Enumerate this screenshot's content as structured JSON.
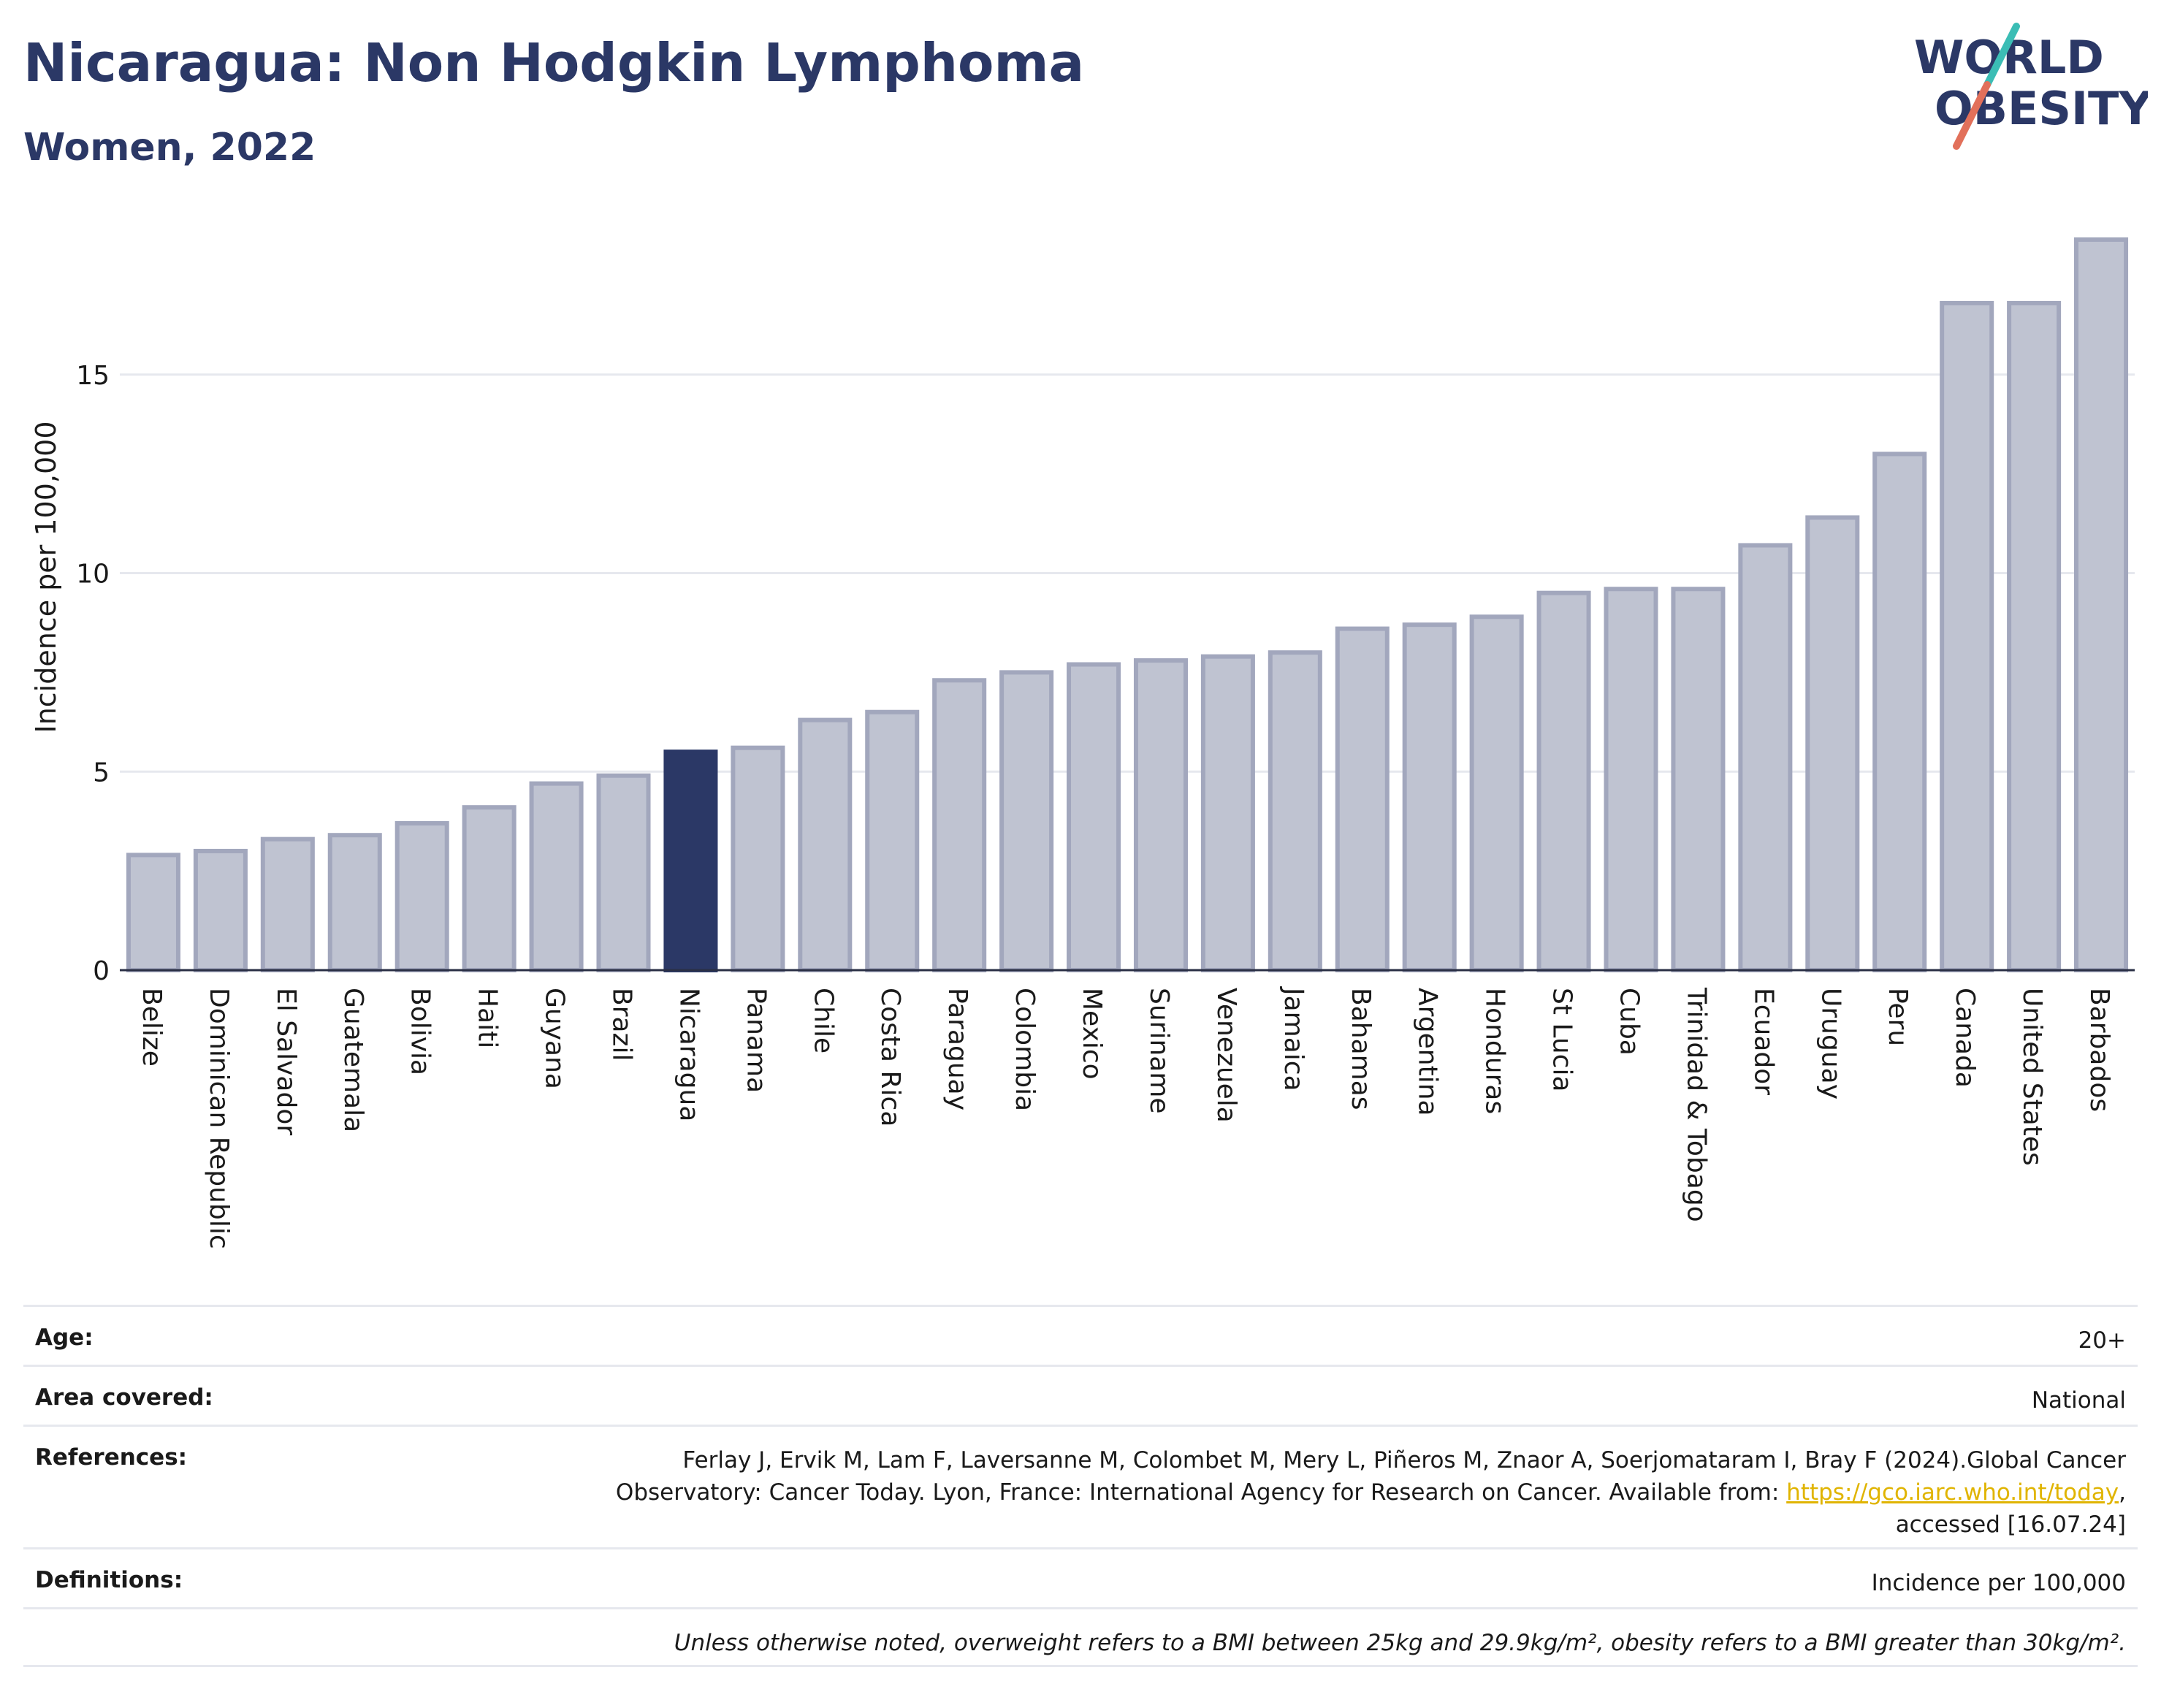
{
  "header": {
    "title": "Nicaragua: Non Hodgkin Lymphoma",
    "subtitle": "Women, 2022",
    "logo_line1": "WORLD",
    "logo_line2": "OBESITY"
  },
  "colors": {
    "highlight": "#2b3866",
    "bar_fill": "#bfc3d1",
    "bar_stroke": "#a2a7bd",
    "grid": "#e6e8ee",
    "axis": "#2a2f45",
    "logo_teal": "#3bbdb5",
    "logo_red": "#e2705a"
  },
  "chart_data": {
    "type": "bar",
    "title": "Nicaragua: Non Hodgkin Lymphoma",
    "subtitle": "Women, 2022",
    "ylabel": "Incidence per 100,000",
    "xlabel": "",
    "ylim": [
      0,
      18.8
    ],
    "yticks": [
      0,
      5,
      10,
      15
    ],
    "grid": true,
    "highlight_category": "Nicaragua",
    "categories": [
      "Belize",
      "Dominican Republic",
      "El Salvador",
      "Guatemala",
      "Bolivia",
      "Haiti",
      "Guyana",
      "Brazil",
      "Nicaragua",
      "Panama",
      "Chile",
      "Costa Rica",
      "Paraguay",
      "Colombia",
      "Mexico",
      "Suriname",
      "Venezuela",
      "Jamaica",
      "Bahamas",
      "Argentina",
      "Honduras",
      "St Lucia",
      "Cuba",
      "Trinidad & Tobago",
      "Ecuador",
      "Uruguay",
      "Peru",
      "Canada",
      "United States",
      "Barbados"
    ],
    "values": [
      2.9,
      3.0,
      3.3,
      3.4,
      3.7,
      4.1,
      4.7,
      4.9,
      5.5,
      5.6,
      6.3,
      6.5,
      7.3,
      7.5,
      7.7,
      7.8,
      7.9,
      8.0,
      8.6,
      8.7,
      8.9,
      9.5,
      9.6,
      9.6,
      10.7,
      11.4,
      13.0,
      16.8,
      16.8,
      18.4
    ]
  },
  "meta": {
    "age_label": "Age:",
    "age_value": "20+",
    "area_label": "Area covered:",
    "area_value": "National",
    "references_label": "References:",
    "references_line1": "Ferlay J, Ervik M, Lam F, Laversanne M, Colombet M, Mery L, Piñeros M, Znaor A, Soerjomataram I, Bray F (2024).Global Cancer",
    "references_line2_pre": "Observatory: Cancer Today. Lyon, France: International Agency for Research on Cancer. Available from: ",
    "references_link": "https://gco.iarc.who.int/today",
    "references_line2_post": ",",
    "references_line3": "accessed [16.07.24]",
    "definitions_label": "Definitions:",
    "definitions_value": "Incidence per 100,000",
    "note": "Unless otherwise noted, overweight refers to a BMI between 25kg and 29.9kg/m², obesity refers to a BMI greater than 30kg/m²."
  }
}
